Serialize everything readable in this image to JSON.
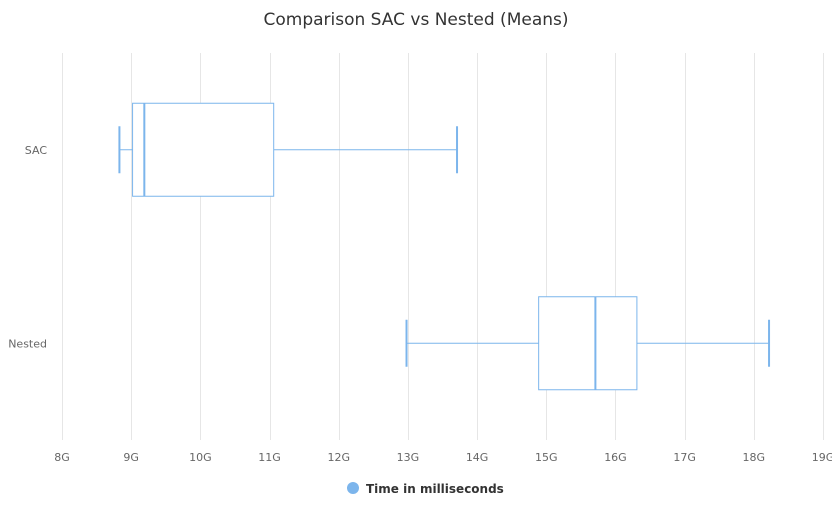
{
  "chart_data": {
    "type": "boxplot",
    "title": "Comparison SAC vs Nested (Means)",
    "orientation": "horizontal",
    "categories": [
      "SAC",
      "Nested"
    ],
    "x_ticks": [
      "8G",
      "9G",
      "10G",
      "11G",
      "12G",
      "13G",
      "14G",
      "15G",
      "16G",
      "17G",
      "18G",
      "19G"
    ],
    "xlim": [
      8,
      19
    ],
    "x_unit_suffix": "G",
    "grid": true,
    "series": [
      {
        "name": "Time in milliseconds",
        "color": "#7cb5ec",
        "boxes": [
          {
            "category": "SAC",
            "low": 8.83,
            "q1": 9.02,
            "median": 9.19,
            "q3": 11.06,
            "high": 13.71
          },
          {
            "category": "Nested",
            "low": 12.98,
            "q1": 14.89,
            "median": 15.71,
            "q3": 16.31,
            "high": 18.22
          }
        ]
      }
    ],
    "legend": {
      "position": "bottom-center",
      "label": "Time in milliseconds"
    }
  }
}
